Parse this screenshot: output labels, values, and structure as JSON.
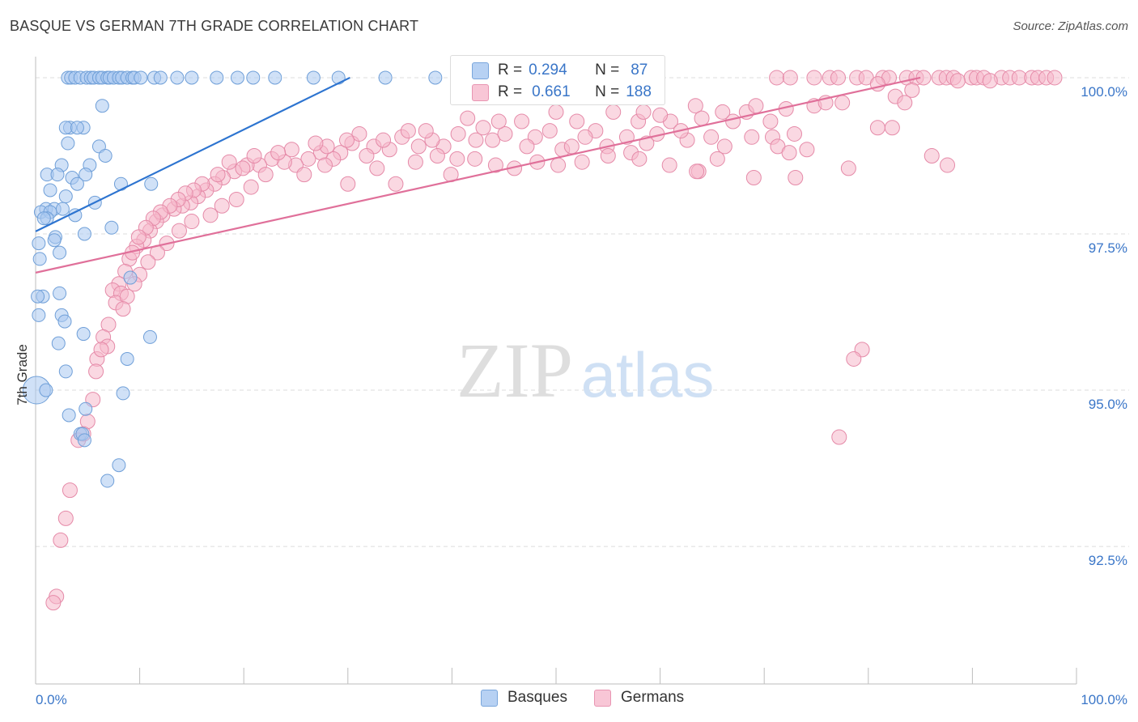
{
  "header": {
    "title": "BASQUE VS GERMAN 7TH GRADE CORRELATION CHART",
    "source": "Source: ZipAtlas.com"
  },
  "legend": {
    "basques": {
      "r_label": "R =",
      "r_value": "0.294",
      "n_label": "N =",
      "n_value": "87"
    },
    "germans": {
      "r_label": "R =",
      "r_value": "0.661",
      "n_label": "N =",
      "n_value": "188"
    }
  },
  "bottom_legend": {
    "basques": "Basques",
    "germans": "Germans"
  },
  "watermark": {
    "zip": "ZIP",
    "atlas": "atlas"
  },
  "colors": {
    "basque_fill": "#a9c8f0",
    "basque_stroke": "#6f9fd8",
    "basque_line": "#2d74d0",
    "german_fill": "#f6b8cb",
    "german_stroke": "#e58aa8",
    "german_line": "#e0709a",
    "tick_text": "#3a76c8",
    "grid": "#dddddd"
  },
  "chart_data": {
    "type": "scatter",
    "title": "BASQUE VS GERMAN 7TH GRADE CORRELATION CHART",
    "xlabel": "",
    "ylabel": "7th Grade",
    "xlim": [
      0,
      100
    ],
    "ylim": [
      90.3,
      100.2
    ],
    "x_tick_labels": [
      "0.0%",
      "100.0%"
    ],
    "y_ticks": [
      {
        "value": 100.0,
        "label": "100.0%"
      },
      {
        "value": 97.5,
        "label": "97.5%"
      },
      {
        "value": 95.0,
        "label": "95.0%"
      },
      {
        "value": 92.5,
        "label": "92.5%"
      }
    ],
    "series": [
      {
        "name": "Basques",
        "r": 0.294,
        "n": 87,
        "trendline": {
          "x": [
            0.0,
            30.2
          ],
          "y": [
            97.54,
            100.0
          ]
        },
        "points": [
          [
            3.1,
            100.0
          ],
          [
            3.4,
            100.0
          ],
          [
            3.8,
            100.0
          ],
          [
            4.3,
            100.0
          ],
          [
            4.9,
            100.0
          ],
          [
            5.3,
            100.0
          ],
          [
            5.6,
            100.0
          ],
          [
            6.1,
            100.0
          ],
          [
            6.4,
            100.0
          ],
          [
            6.9,
            100.0
          ],
          [
            7.1,
            100.0
          ],
          [
            7.5,
            100.0
          ],
          [
            8.0,
            100.0
          ],
          [
            8.3,
            100.0
          ],
          [
            8.8,
            100.0
          ],
          [
            9.3,
            100.0
          ],
          [
            9.5,
            100.0
          ],
          [
            10.1,
            100.0
          ],
          [
            11.4,
            100.0
          ],
          [
            12.0,
            100.0
          ],
          [
            13.6,
            100.0
          ],
          [
            15.0,
            100.0
          ],
          [
            17.4,
            100.0
          ],
          [
            19.4,
            100.0
          ],
          [
            20.9,
            100.0
          ],
          [
            23.0,
            100.0
          ],
          [
            26.7,
            100.0
          ],
          [
            29.1,
            100.0
          ],
          [
            33.6,
            100.0
          ],
          [
            38.4,
            100.0
          ],
          [
            6.4,
            99.55
          ],
          [
            4.6,
            99.2
          ],
          [
            3.3,
            99.2
          ],
          [
            2.9,
            99.2
          ],
          [
            4.0,
            99.2
          ],
          [
            3.1,
            98.95
          ],
          [
            6.1,
            98.9
          ],
          [
            6.7,
            98.75
          ],
          [
            2.5,
            98.6
          ],
          [
            5.2,
            98.6
          ],
          [
            1.1,
            98.45
          ],
          [
            2.1,
            98.45
          ],
          [
            4.8,
            98.45
          ],
          [
            3.5,
            98.4
          ],
          [
            4.0,
            98.3
          ],
          [
            8.2,
            98.3
          ],
          [
            11.1,
            98.3
          ],
          [
            1.4,
            98.2
          ],
          [
            2.9,
            98.1
          ],
          [
            5.7,
            98.0
          ],
          [
            1.0,
            97.9
          ],
          [
            1.8,
            97.9
          ],
          [
            2.6,
            97.9
          ],
          [
            0.5,
            97.85
          ],
          [
            1.4,
            97.85
          ],
          [
            3.8,
            97.8
          ],
          [
            1.1,
            97.75
          ],
          [
            0.8,
            97.75
          ],
          [
            7.3,
            97.6
          ],
          [
            1.9,
            97.45
          ],
          [
            4.7,
            97.5
          ],
          [
            1.8,
            97.4
          ],
          [
            0.3,
            97.35
          ],
          [
            2.3,
            97.2
          ],
          [
            0.4,
            97.1
          ],
          [
            9.1,
            96.8
          ],
          [
            2.3,
            96.55
          ],
          [
            0.7,
            96.5
          ],
          [
            0.2,
            96.5
          ],
          [
            0.3,
            96.2
          ],
          [
            2.5,
            96.2
          ],
          [
            2.8,
            96.1
          ],
          [
            4.6,
            95.9
          ],
          [
            11.0,
            95.85
          ],
          [
            2.2,
            95.75
          ],
          [
            8.8,
            95.5
          ],
          [
            2.9,
            95.3
          ],
          [
            8.4,
            94.95
          ],
          [
            0.1,
            95.0
          ],
          [
            1.0,
            95.0
          ],
          [
            4.8,
            94.7
          ],
          [
            3.2,
            94.6
          ],
          [
            4.3,
            94.3
          ],
          [
            4.5,
            94.3
          ],
          [
            4.7,
            94.2
          ],
          [
            8.0,
            93.8
          ],
          [
            6.9,
            93.55
          ]
        ]
      },
      {
        "name": "Germans",
        "r": 0.661,
        "n": 188,
        "trendline": {
          "x": [
            0.0,
            85.0
          ],
          "y": [
            96.88,
            100.0
          ]
        },
        "points": [
          [
            71.2,
            100.0
          ],
          [
            72.5,
            100.0
          ],
          [
            74.8,
            100.0
          ],
          [
            76.3,
            100.0
          ],
          [
            77.1,
            100.0
          ],
          [
            78.9,
            100.0
          ],
          [
            79.8,
            100.0
          ],
          [
            81.4,
            100.0
          ],
          [
            82.0,
            100.0
          ],
          [
            83.7,
            100.0
          ],
          [
            84.6,
            100.0
          ],
          [
            85.3,
            100.0
          ],
          [
            86.8,
            100.0
          ],
          [
            87.5,
            100.0
          ],
          [
            88.2,
            100.0
          ],
          [
            89.9,
            100.0
          ],
          [
            90.4,
            100.0
          ],
          [
            91.1,
            100.0
          ],
          [
            92.8,
            100.0
          ],
          [
            93.6,
            100.0
          ],
          [
            94.5,
            100.0
          ],
          [
            95.7,
            100.0
          ],
          [
            96.3,
            100.0
          ],
          [
            97.1,
            100.0
          ],
          [
            97.9,
            100.0
          ],
          [
            80.9,
            99.9
          ],
          [
            84.2,
            99.8
          ],
          [
            82.6,
            99.7
          ],
          [
            88.6,
            99.95
          ],
          [
            91.7,
            99.95
          ],
          [
            83.5,
            99.6
          ],
          [
            77.5,
            99.6
          ],
          [
            74.8,
            99.55
          ],
          [
            68.3,
            99.45
          ],
          [
            67.0,
            99.3
          ],
          [
            70.6,
            99.3
          ],
          [
            75.9,
            99.6
          ],
          [
            69.2,
            99.55
          ],
          [
            72.1,
            99.5
          ],
          [
            63.4,
            99.55
          ],
          [
            61.0,
            99.3
          ],
          [
            57.9,
            99.3
          ],
          [
            59.7,
            99.1
          ],
          [
            56.8,
            99.05
          ],
          [
            53.8,
            99.15
          ],
          [
            52.8,
            99.05
          ],
          [
            49.4,
            99.15
          ],
          [
            48.0,
            99.05
          ],
          [
            47.2,
            98.9
          ],
          [
            50.6,
            98.85
          ],
          [
            51.5,
            98.9
          ],
          [
            54.9,
            98.9
          ],
          [
            57.2,
            98.8
          ],
          [
            58.7,
            98.95
          ],
          [
            62.6,
            99.0
          ],
          [
            64.9,
            99.05
          ],
          [
            66.2,
            98.9
          ],
          [
            68.8,
            99.05
          ],
          [
            70.8,
            99.05
          ],
          [
            72.9,
            99.1
          ],
          [
            74.1,
            98.85
          ],
          [
            60.9,
            98.6
          ],
          [
            63.7,
            98.5
          ],
          [
            71.3,
            98.9
          ],
          [
            72.4,
            98.8
          ],
          [
            78.1,
            98.55
          ],
          [
            80.9,
            99.2
          ],
          [
            82.3,
            99.2
          ],
          [
            86.1,
            98.75
          ],
          [
            87.6,
            98.6
          ],
          [
            42.3,
            99.0
          ],
          [
            43.9,
            99.0
          ],
          [
            45.1,
            99.1
          ],
          [
            40.6,
            99.1
          ],
          [
            39.2,
            98.9
          ],
          [
            38.1,
            99.0
          ],
          [
            36.8,
            98.9
          ],
          [
            35.2,
            99.05
          ],
          [
            34.0,
            98.85
          ],
          [
            32.5,
            98.9
          ],
          [
            31.8,
            98.75
          ],
          [
            30.4,
            98.95
          ],
          [
            29.3,
            98.8
          ],
          [
            28.6,
            98.7
          ],
          [
            27.4,
            98.8
          ],
          [
            26.2,
            98.7
          ],
          [
            25.0,
            98.6
          ],
          [
            23.9,
            98.65
          ],
          [
            22.7,
            98.7
          ],
          [
            21.5,
            98.6
          ],
          [
            20.3,
            98.6
          ],
          [
            19.1,
            98.5
          ],
          [
            18.0,
            98.4
          ],
          [
            17.2,
            98.3
          ],
          [
            16.4,
            98.2
          ],
          [
            15.6,
            98.1
          ],
          [
            14.9,
            98.0
          ],
          [
            14.1,
            97.95
          ],
          [
            13.3,
            97.9
          ],
          [
            12.2,
            97.8
          ],
          [
            11.6,
            97.7
          ],
          [
            11.0,
            97.55
          ],
          [
            10.4,
            97.4
          ],
          [
            9.7,
            97.3
          ],
          [
            9.0,
            97.1
          ],
          [
            8.6,
            96.9
          ],
          [
            8.0,
            96.7
          ],
          [
            7.4,
            96.6
          ],
          [
            7.0,
            96.05
          ],
          [
            6.5,
            95.85
          ],
          [
            5.9,
            95.5
          ],
          [
            5.5,
            94.85
          ],
          [
            5.0,
            94.5
          ],
          [
            4.6,
            94.3
          ],
          [
            4.1,
            94.2
          ],
          [
            3.3,
            93.4
          ],
          [
            2.9,
            92.95
          ],
          [
            2.4,
            92.6
          ],
          [
            2.0,
            91.7
          ],
          [
            1.7,
            91.6
          ],
          [
            44.5,
            99.3
          ],
          [
            46.7,
            99.3
          ],
          [
            50.0,
            99.45
          ],
          [
            52.0,
            99.3
          ],
          [
            55.5,
            99.45
          ],
          [
            58.4,
            99.45
          ],
          [
            60.0,
            99.4
          ],
          [
            62.0,
            99.15
          ],
          [
            64.0,
            99.35
          ],
          [
            66.0,
            99.45
          ],
          [
            37.5,
            99.15
          ],
          [
            41.5,
            99.35
          ],
          [
            43.0,
            99.2
          ],
          [
            35.8,
            99.15
          ],
          [
            33.4,
            99.0
          ],
          [
            31.1,
            99.1
          ],
          [
            29.9,
            99.0
          ],
          [
            28.0,
            98.9
          ],
          [
            26.9,
            98.95
          ],
          [
            24.6,
            98.85
          ],
          [
            23.3,
            98.8
          ],
          [
            21.0,
            98.75
          ],
          [
            19.9,
            98.55
          ],
          [
            18.6,
            98.65
          ],
          [
            17.5,
            98.45
          ],
          [
            16.0,
            98.3
          ],
          [
            15.2,
            98.2
          ],
          [
            14.4,
            98.15
          ],
          [
            13.7,
            98.05
          ],
          [
            12.9,
            97.95
          ],
          [
            12.0,
            97.85
          ],
          [
            11.3,
            97.75
          ],
          [
            10.6,
            97.6
          ],
          [
            9.9,
            97.45
          ],
          [
            9.3,
            97.2
          ],
          [
            8.2,
            96.55
          ],
          [
            7.7,
            96.4
          ],
          [
            6.9,
            95.7
          ],
          [
            6.3,
            95.65
          ],
          [
            5.8,
            95.3
          ],
          [
            39.9,
            98.45
          ],
          [
            34.6,
            98.3
          ],
          [
            32.8,
            98.55
          ],
          [
            30.0,
            98.3
          ],
          [
            27.8,
            98.6
          ],
          [
            25.8,
            98.45
          ],
          [
            22.1,
            98.45
          ],
          [
            20.7,
            98.25
          ],
          [
            19.3,
            98.05
          ],
          [
            17.9,
            97.95
          ],
          [
            16.8,
            97.8
          ],
          [
            15.0,
            97.7
          ],
          [
            13.8,
            97.55
          ],
          [
            12.6,
            97.35
          ],
          [
            11.7,
            97.2
          ],
          [
            10.8,
            97.05
          ],
          [
            10.0,
            96.85
          ],
          [
            9.5,
            96.7
          ],
          [
            8.8,
            96.5
          ],
          [
            8.4,
            96.3
          ],
          [
            79.4,
            95.65
          ],
          [
            78.6,
            95.5
          ],
          [
            77.2,
            94.25
          ],
          [
            73.0,
            98.4
          ],
          [
            69.0,
            98.4
          ],
          [
            65.5,
            98.7
          ],
          [
            63.5,
            98.5
          ],
          [
            58.0,
            98.7
          ],
          [
            55.0,
            98.75
          ],
          [
            52.5,
            98.65
          ],
          [
            50.2,
            98.6
          ],
          [
            48.2,
            98.65
          ],
          [
            46.0,
            98.55
          ],
          [
            44.2,
            98.6
          ],
          [
            42.2,
            98.7
          ],
          [
            40.5,
            98.7
          ],
          [
            38.6,
            98.75
          ],
          [
            36.5,
            98.65
          ]
        ]
      }
    ]
  }
}
